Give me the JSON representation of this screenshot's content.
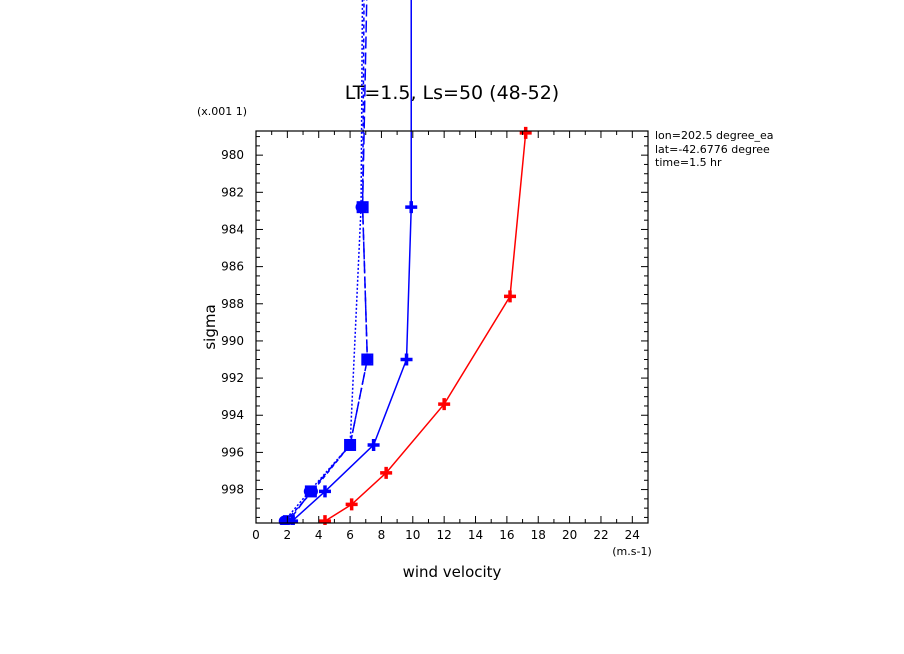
{
  "chart_data": {
    "type": "line",
    "title": "LT=1.5, Ls=50 (48-52)",
    "xlabel": "wind velocity",
    "ylabel": "sigma",
    "x_unit": "(m.s-1)",
    "y_scale_note": "(x.001 1)",
    "xlim": [
      0,
      25
    ],
    "ylim": [
      999.8,
      978.7
    ],
    "y_reversed": true,
    "x_ticks": [
      0,
      2,
      4,
      6,
      8,
      10,
      12,
      14,
      16,
      18,
      20,
      22,
      24
    ],
    "y_ticks": [
      980,
      982,
      984,
      986,
      988,
      990,
      992,
      994,
      996,
      998
    ],
    "grid": false,
    "info_lines": [
      "lon=202.5 degree_ea",
      "lat=-42.6776 degree",
      "time=1.5 hr"
    ],
    "series": [
      {
        "color": "#0000ff",
        "dash": "2,2",
        "marker": "circle",
        "points": [
          [
            1.8,
            999.7
          ],
          [
            3.4,
            998.1
          ],
          [
            6.0,
            995.6
          ],
          [
            6.7,
            982.8
          ],
          [
            6.8,
            970
          ]
        ]
      },
      {
        "color": "#0000ff",
        "dash": "4,3",
        "marker": "circle",
        "points": [
          [
            1.9,
            999.7
          ],
          [
            3.6,
            998.1
          ],
          [
            6.0,
            995.6
          ],
          [
            7.1,
            991.0
          ],
          [
            6.8,
            982.8
          ],
          [
            6.9,
            970
          ]
        ]
      },
      {
        "color": "#0000ff",
        "dash": "12,4",
        "marker": "square",
        "points": [
          [
            2.1,
            999.7
          ],
          [
            3.5,
            998.1
          ],
          [
            6.0,
            995.6
          ],
          [
            7.1,
            991.0
          ],
          [
            6.8,
            982.8
          ],
          [
            7.1,
            970
          ]
        ]
      },
      {
        "color": "#0000ff",
        "dash": "",
        "marker": "plus",
        "points": [
          [
            2.3,
            999.7
          ],
          [
            4.4,
            998.1
          ],
          [
            7.5,
            995.6
          ],
          [
            9.6,
            991.0
          ],
          [
            9.9,
            982.8
          ],
          [
            9.9,
            970
          ]
        ]
      },
      {
        "color": "#ff0000",
        "dash": "",
        "marker": "plus",
        "points": [
          [
            4.4,
            999.7
          ],
          [
            6.1,
            998.8
          ],
          [
            8.3,
            997.1
          ],
          [
            12.0,
            993.4
          ],
          [
            16.2,
            987.6
          ],
          [
            17.2,
            978.8
          ]
        ]
      }
    ]
  }
}
